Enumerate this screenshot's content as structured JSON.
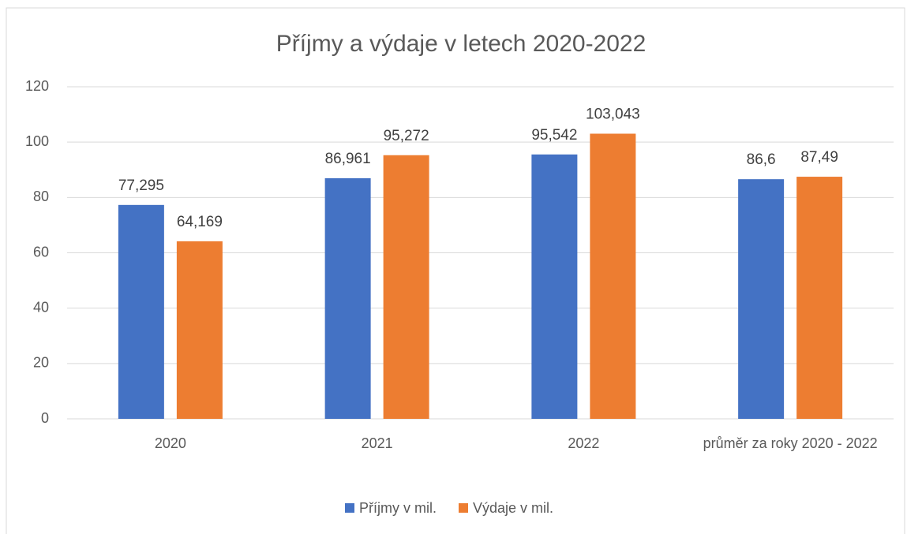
{
  "chart_data": {
    "type": "bar",
    "title": "Příjmy a výdaje v letech 2020-2022",
    "categories": [
      "2020",
      "2021",
      "2022",
      "průměr za roky 2020 - 2022"
    ],
    "series": [
      {
        "name": "Příjmy v mil.",
        "color": "#4472c4",
        "values": [
          77.295,
          86.961,
          95.542,
          86.6
        ],
        "value_labels": [
          "77,295",
          "86,961",
          "95,542",
          "86,6"
        ]
      },
      {
        "name": "Výdaje v mil.",
        "color": "#ed7d31",
        "values": [
          64.169,
          95.272,
          103.043,
          87.49
        ],
        "value_labels": [
          "64,169",
          "95,272",
          "103,043",
          "87,49"
        ]
      }
    ],
    "ylim": [
      0,
      120
    ],
    "yticks": [
      0,
      20,
      40,
      60,
      80,
      100,
      120
    ],
    "grid": true,
    "legend": "bottom"
  }
}
